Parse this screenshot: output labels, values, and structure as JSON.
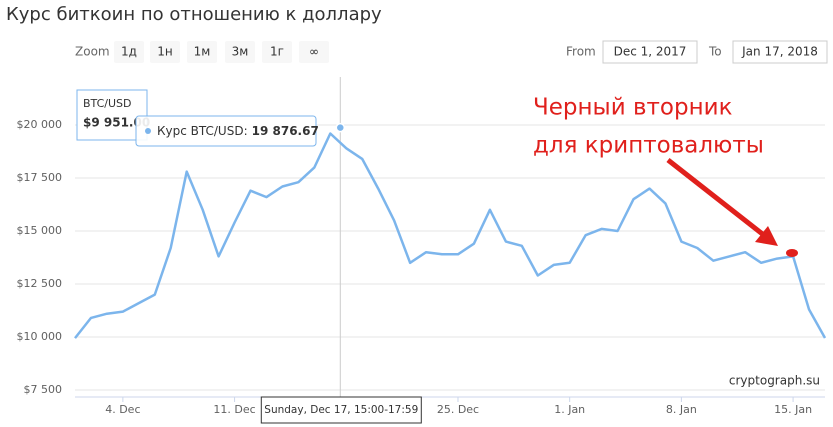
{
  "chart_data": {
    "type": "line",
    "title": "Курс биткоин по отношению к доллару",
    "zoom": {
      "label": "Zoom",
      "buttons": [
        "1д",
        "1н",
        "1м",
        "3м",
        "1г",
        "∞"
      ]
    },
    "range": {
      "from_label": "From",
      "from": "Dec 1, 2017",
      "to_label": "To",
      "to": "Jan 17, 2018"
    },
    "x": [
      "2017-12-01",
      "2017-12-02",
      "2017-12-03",
      "2017-12-04",
      "2017-12-05",
      "2017-12-06",
      "2017-12-07",
      "2017-12-08",
      "2017-12-09",
      "2017-12-10",
      "2017-12-11",
      "2017-12-12",
      "2017-12-13",
      "2017-12-14",
      "2017-12-15",
      "2017-12-16",
      "2017-12-17",
      "2017-12-18",
      "2017-12-19",
      "2017-12-20",
      "2017-12-21",
      "2017-12-22",
      "2017-12-23",
      "2017-12-24",
      "2017-12-25",
      "2017-12-26",
      "2017-12-27",
      "2017-12-28",
      "2017-12-29",
      "2017-12-30",
      "2017-12-31",
      "2018-01-01",
      "2018-01-02",
      "2018-01-03",
      "2018-01-04",
      "2018-01-05",
      "2018-01-06",
      "2018-01-07",
      "2018-01-08",
      "2018-01-09",
      "2018-01-10",
      "2018-01-11",
      "2018-01-12",
      "2018-01-13",
      "2018-01-14",
      "2018-01-15",
      "2018-01-16",
      "2018-01-17"
    ],
    "series": [
      {
        "color": "#7cb5ec",
        "values": [
          9950,
          10900,
          11100,
          11200,
          11600,
          12000,
          14200,
          17800,
          16000,
          13800,
          15400,
          16900,
          16600,
          17100,
          17300,
          18000,
          19600,
          18900,
          18400,
          17000,
          15500,
          13500,
          14000,
          13900,
          13900,
          14400,
          16000,
          14500,
          14300,
          12900,
          13400,
          13500,
          14800,
          15100,
          15000,
          16500,
          17000,
          16300,
          14500,
          14200,
          13600,
          13800,
          14000,
          13500,
          13700,
          13800,
          11300,
          9951
        ]
      }
    ],
    "xlim": [
      "2017-12-01",
      "2018-01-17"
    ],
    "xticks": [
      {
        "value": "2017-12-04",
        "label": "4. Dec"
      },
      {
        "value": "2017-12-11",
        "label": "11. Dec"
      },
      {
        "value": "2017-12-25",
        "label": "25. Dec"
      },
      {
        "value": "2018-01-01",
        "label": "1. Jan"
      },
      {
        "value": "2018-01-08",
        "label": "8. Jan"
      },
      {
        "value": "2018-01-15",
        "label": "15. Jan"
      }
    ],
    "ylim": [
      7500,
      22500
    ],
    "yticks": [
      {
        "value": 7500,
        "label": "$7 500"
      },
      {
        "value": 10000,
        "label": "$10 000"
      },
      {
        "value": 12500,
        "label": "$12 500"
      },
      {
        "value": 15000,
        "label": "$15 000"
      },
      {
        "value": 17500,
        "label": "$17 500"
      },
      {
        "value": 20000,
        "label": "$20 000"
      }
    ],
    "grid": true,
    "last": {
      "label": "BTC/USD",
      "value": 9951,
      "value_label": "$9 951.00"
    },
    "tooltip": {
      "x": "2017-12-17T15:00:00Z",
      "text": "Курс BTC/USD:",
      "value": 19876.67,
      "value_label": "19 876.67",
      "date_label": "Sunday, Dec 17, 15:00-17:59"
    },
    "annotation": [
      "Черный вторник",
      "для криптовалюты"
    ],
    "credit": "cryptograph.su"
  }
}
